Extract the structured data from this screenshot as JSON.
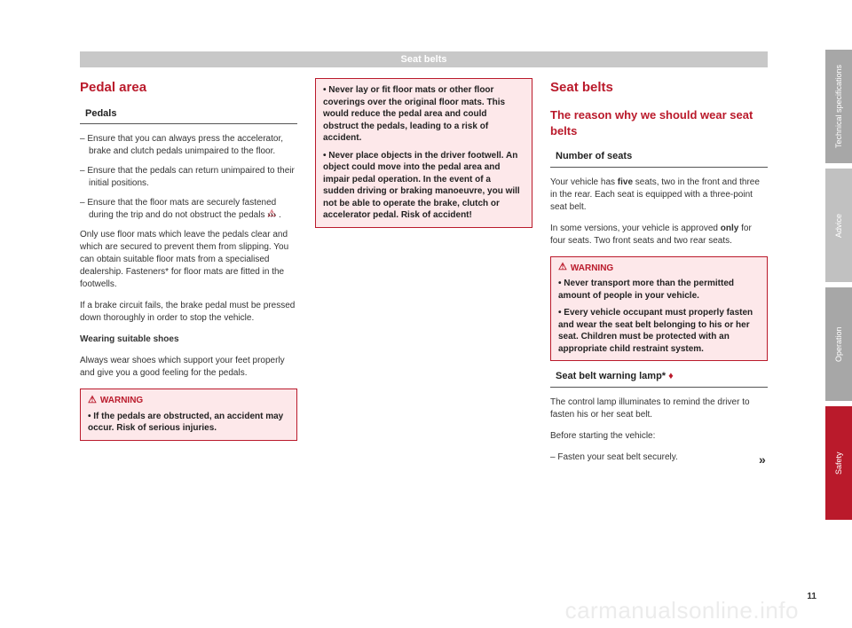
{
  "header": "Seat belts",
  "col1": {
    "section": "Pedal area",
    "sub1": "Pedals",
    "li1": "– Ensure that you can always press the accelerator, brake and clutch pedals unimpaired to the floor.",
    "li2": "– Ensure that the pedals can return unimpaired to their initial positions.",
    "li3a": "– Ensure that the floor mats are securely fastened during the trip and do not obstruct the pedals ",
    "li3b": " .",
    "p1": "Only use floor mats which leave the pedals clear and which are secured to prevent them from slipping. You can obtain suitable floor mats from a specialised dealership. Fasteners* for floor mats are fitted in the footwells.",
    "p2": "If a brake circuit fails, the brake pedal must be pressed down thoroughly in order to stop the vehicle.",
    "b1": "Wearing suitable shoes",
    "p3": "Always wear shoes which support your feet properly and give you a good feeling for the pedals.",
    "warn_title": "WARNING",
    "warn_text": "• If the pedals are obstructed, an accident may occur. Risk of serious injuries."
  },
  "col2": {
    "w1": "• Never lay or fit floor mats or other floor coverings over the original floor mats. This would reduce the pedal area and could obstruct the pedals, leading to a risk of accident.",
    "w2": "• Never place objects in the driver footwell. An object could move into the pedal area and impair pedal operation. In the event of a sudden driving or braking manoeuvre, you will not be able to operate the brake, clutch or accelerator pedal. Risk of accident!"
  },
  "col3": {
    "section": "Seat belts",
    "h2": "The reason why we should wear seat belts",
    "sub1": "Number of seats",
    "p1a": "Your vehicle has ",
    "p1b": "five",
    "p1c": " seats, two in the front and three in the rear. Each seat is equipped with a three-point seat belt.",
    "p2a": "In some versions, your vehicle is approved ",
    "p2b": "only",
    "p2c": " for four seats. Two front seats and two rear seats.",
    "warn_title": "WARNING",
    "w1": "• Never transport more than the permitted amount of people in your vehicle.",
    "w2": "• Every vehicle occupant must properly fasten and wear the seat belt belonging to his or her seat. Children must be protected with an appropriate child restraint system.",
    "sub2": "Seat belt warning lamp* ",
    "p3": "The control lamp illuminates to remind the driver to fasten his or her seat belt.",
    "p4": "Before starting the vehicle:",
    "li1": "– Fasten your seat belt securely."
  },
  "tabs": {
    "t1": "Technical specifications",
    "t2": "Advice",
    "t3": "Operation",
    "t4": "Safety"
  },
  "page_num": "11",
  "watermark": "carmanualsonline.info",
  "arrows": "›››",
  "cont": "»"
}
